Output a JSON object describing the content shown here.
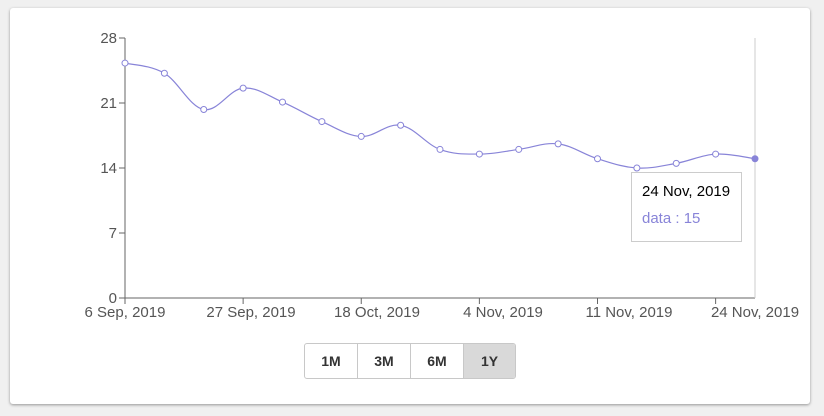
{
  "chart_data": {
    "type": "line",
    "x": [
      "6 Sep, 2019",
      "",
      "",
      "27 Sep, 2019",
      "",
      "",
      "18 Oct, 2019",
      "",
      "",
      "4 Nov, 2019",
      "",
      "",
      "11 Nov, 2019",
      "",
      "",
      "24 Nov, 2019",
      ""
    ],
    "x_ticks": [
      "6 Sep, 2019",
      "27 Sep, 2019",
      "18 Oct, 2019",
      "4 Nov, 2019",
      "11 Nov, 2019",
      "24 Nov, 2019"
    ],
    "series": [
      {
        "values": [
          25.3,
          24.2,
          20.3,
          22.6,
          21.1,
          19.0,
          17.4,
          18.6,
          16.0,
          15.5,
          16.0,
          16.6,
          15.0,
          14.0,
          14.5,
          15.5,
          15.0
        ]
      }
    ],
    "ylim": [
      0,
      28
    ],
    "y_ticks": [
      0,
      7,
      14,
      21,
      28
    ],
    "line_color": "#8884d8",
    "grid": false,
    "xlabel": "",
    "ylabel": ""
  },
  "tooltip": {
    "date": "24 Nov, 2019",
    "value_text": "data : 15"
  },
  "range_selector": {
    "buttons": [
      "1M",
      "3M",
      "6M",
      "1Y"
    ],
    "active": "1Y"
  }
}
